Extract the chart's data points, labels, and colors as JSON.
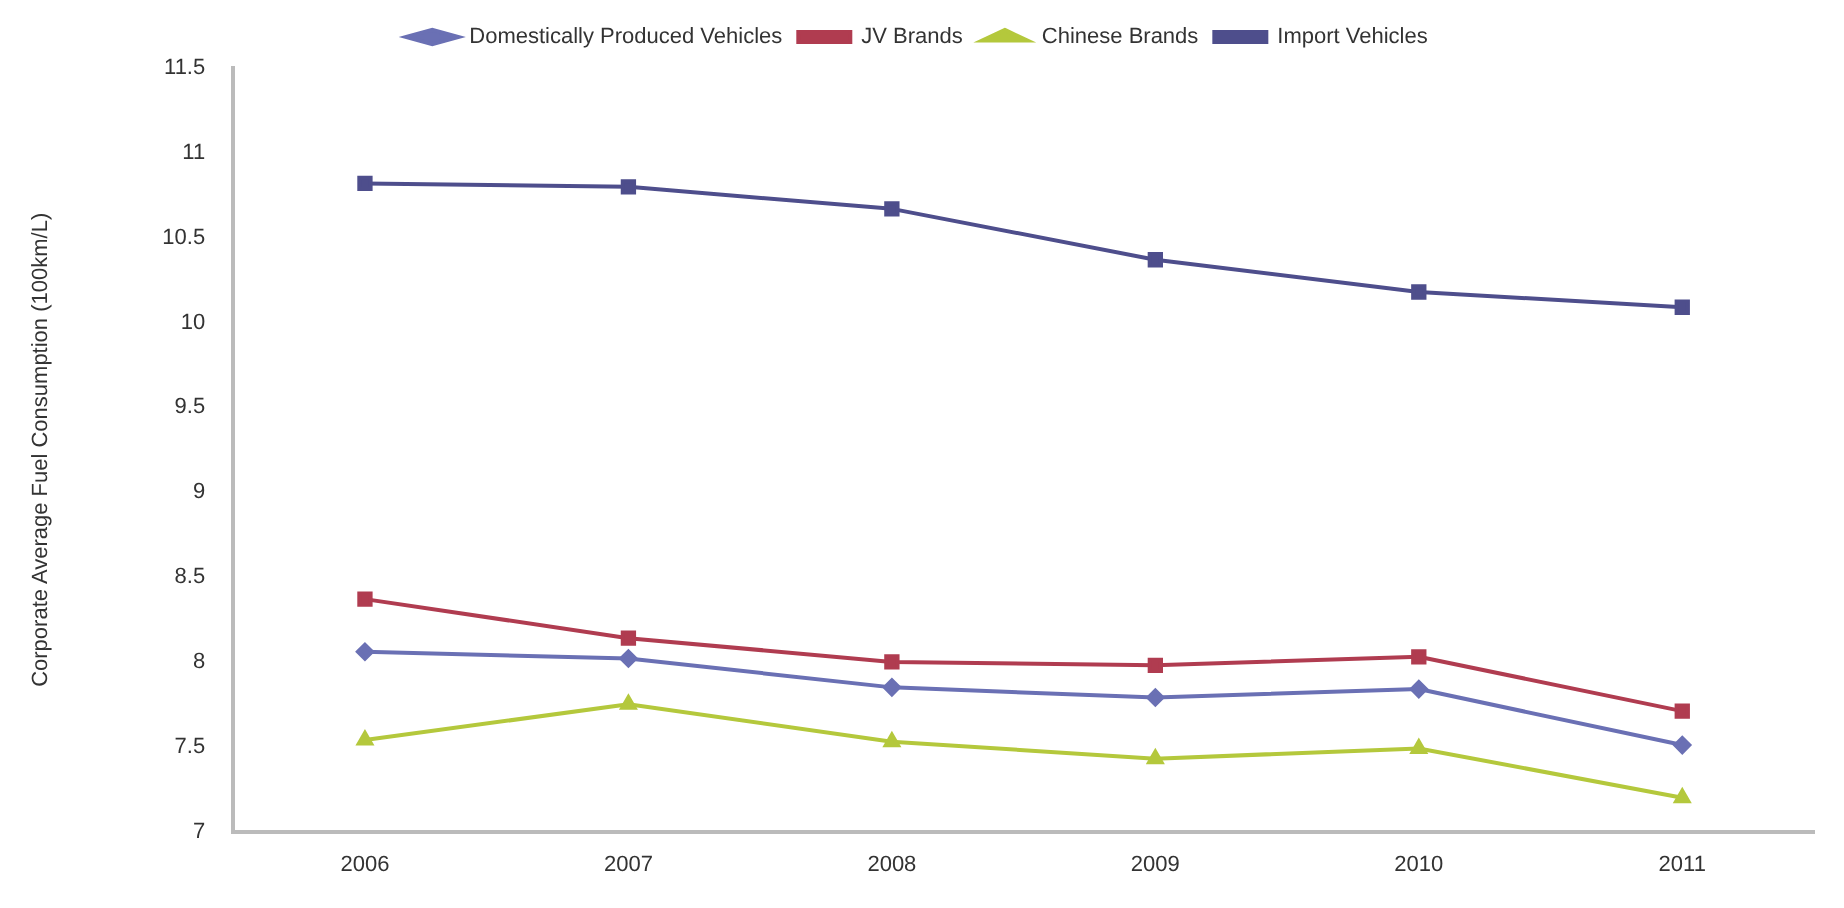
{
  "chart_data": {
    "type": "line",
    "ylabel": "Corporate Average Fuel Consumption (100km/L)",
    "categories": [
      "2006",
      "2007",
      "2008",
      "2009",
      "2010",
      "2011"
    ],
    "series": [
      {
        "name": "Domestically Produced Vehicles",
        "color": "#6a70b4",
        "marker": "diamond",
        "values": [
          8.06,
          8.02,
          7.85,
          7.79,
          7.84,
          7.51
        ]
      },
      {
        "name": "JV Brands",
        "color": "#b03c50",
        "marker": "square",
        "values": [
          8.37,
          8.14,
          8.0,
          7.98,
          8.03,
          7.71
        ]
      },
      {
        "name": "Chinese Brands",
        "color": "#b4c83c",
        "marker": "triangle",
        "values": [
          7.54,
          7.75,
          7.53,
          7.43,
          7.49,
          7.2
        ]
      },
      {
        "name": "Import Vehicles",
        "color": "#4e4e8c",
        "marker": "square",
        "values": [
          10.82,
          10.8,
          10.67,
          10.37,
          10.18,
          10.09
        ]
      }
    ],
    "ylim": [
      7,
      11.5
    ],
    "yticks": [
      7,
      7.5,
      8,
      8.5,
      9,
      9.5,
      10,
      10.5,
      11,
      11.5
    ],
    "grid": false,
    "legend": "top",
    "line_style": "solid"
  }
}
